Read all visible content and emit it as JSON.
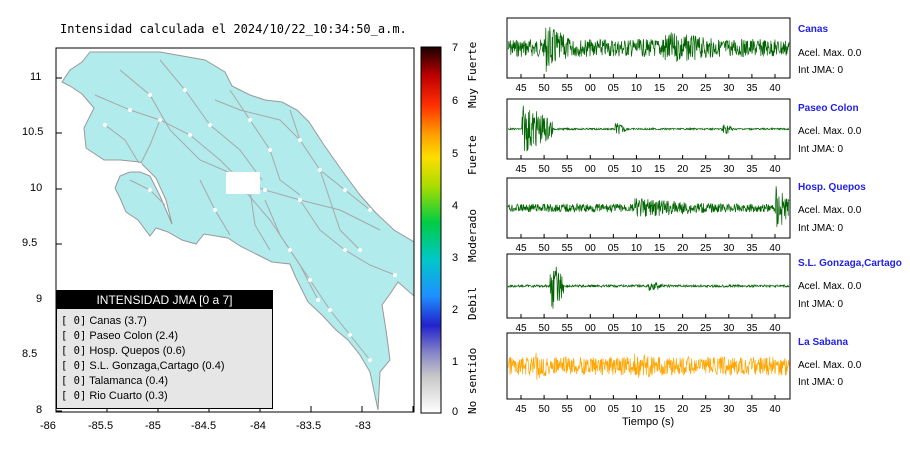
{
  "map": {
    "title": "Intensidad calculada el 2024/10/22_10:34:50_a.m.",
    "y_ticks": [
      "11",
      "10.5",
      "10",
      "9.5",
      "9",
      "8.5",
      "8"
    ],
    "x_ticks": [
      "-86",
      "-85.5",
      "-85",
      "-84.5",
      "-84",
      "-83.5",
      "-83"
    ],
    "colors": {
      "land": "#b1ebec",
      "roads": "#a8a8a8",
      "towns": "#ffffff"
    }
  },
  "legend": {
    "header": "INTENSIDAD JMA [0 a 7]",
    "items": [
      {
        "badge": "[ 0]",
        "label": "Canas (3.7)"
      },
      {
        "badge": "[ 0]",
        "label": "Paseo Colon (2.4)"
      },
      {
        "badge": "[ 0]",
        "label": "Hosp. Quepos (0.6)"
      },
      {
        "badge": "[ 0]",
        "label": "S.L. Gonzaga,Cartago (0.4)"
      },
      {
        "badge": "[ 0]",
        "label": "Talamanca (0.4)"
      },
      {
        "badge": "[ 0]",
        "label": "Rio Cuarto (0.3)"
      }
    ]
  },
  "colorbar": {
    "ticks": [
      "7",
      "6",
      "5",
      "4",
      "3",
      "2",
      "1",
      "0"
    ],
    "labels": [
      "Muy Fuerte",
      "Fuerte",
      "Moderado",
      "Debil",
      "No sentido"
    ]
  },
  "waveforms": {
    "xlabel": "Tiempo (s)",
    "stations": [
      {
        "name": "Canas",
        "acel": "Acel. Max. 0.0",
        "int": "Int JMA: 0",
        "color": "#006400",
        "ticks": [
          "45",
          "50",
          "55",
          "00",
          "05",
          "10",
          "15",
          "20",
          "25",
          "30",
          "35",
          "40"
        ]
      },
      {
        "name": "Paseo Colon",
        "acel": "Acel. Max. 0.0",
        "int": "Int JMA: 0",
        "color": "#006400",
        "ticks": [
          "45",
          "50",
          "55",
          "00",
          "05",
          "10",
          "15",
          "20",
          "25",
          "30",
          "35",
          "40"
        ]
      },
      {
        "name": "Hosp. Quepos",
        "acel": "Acel. Max. 0.0",
        "int": "Int JMA: 0",
        "color": "#006400",
        "ticks": [
          "45",
          "50",
          "55",
          "00",
          "05",
          "10",
          "15",
          "20",
          "25",
          "30",
          "35",
          "40"
        ]
      },
      {
        "name": "S.L. Gonzaga,Cartago",
        "acel": "Acel. Max. 0.0",
        "int": "Int JMA: 0",
        "color": "#006400",
        "ticks": [
          "45",
          "50",
          "55",
          "00",
          "05",
          "10",
          "15",
          "20",
          "25",
          "30",
          "35",
          "40"
        ]
      },
      {
        "name": "La Sabana",
        "acel": "Acel. Max. 0.0",
        "int": "Int JMA: 0",
        "color": "#ffa500",
        "ticks": [
          "45",
          "50",
          "55",
          "00",
          "05",
          "10",
          "15",
          "20",
          "25",
          "30",
          "35",
          "40"
        ]
      }
    ]
  }
}
